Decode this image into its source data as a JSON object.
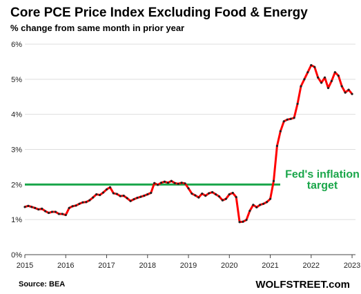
{
  "chart_data": {
    "type": "line",
    "title": "Core PCE Price Index Excluding Food & Energy",
    "subtitle": "% change from same month in prior year",
    "source": "Source: BEA",
    "brand": "WOLFSTREET.com",
    "x_ticks": [
      "2015",
      "2016",
      "2017",
      "2018",
      "2019",
      "2020",
      "2021",
      "2022",
      "2023"
    ],
    "y_ticks": [
      "0%",
      "1%",
      "2%",
      "3%",
      "4%",
      "5%",
      "6%"
    ],
    "xlim": [
      "2015-01",
      "2023-02"
    ],
    "ylim": [
      0,
      6
    ],
    "grid": "horizontal",
    "colors": {
      "line": "#ff0000",
      "markers": "#222222",
      "target": "#1aa64a",
      "grid": "#dddddd"
    },
    "target_line": {
      "value": 2.0,
      "label_line1": "Fed's inflation",
      "label_line2": "target"
    },
    "series": [
      {
        "x": [
          "2015-01",
          "2015-02",
          "2015-03",
          "2015-04",
          "2015-05",
          "2015-06",
          "2015-07",
          "2015-08",
          "2015-09",
          "2015-10",
          "2015-11",
          "2015-12",
          "2016-01",
          "2016-02",
          "2016-03",
          "2016-04",
          "2016-05",
          "2016-06",
          "2016-07",
          "2016-08",
          "2016-09",
          "2016-10",
          "2016-11",
          "2016-12",
          "2017-01",
          "2017-02",
          "2017-03",
          "2017-04",
          "2017-05",
          "2017-06",
          "2017-07",
          "2017-08",
          "2017-09",
          "2017-10",
          "2017-11",
          "2017-12",
          "2018-01",
          "2018-02",
          "2018-03",
          "2018-04",
          "2018-05",
          "2018-06",
          "2018-07",
          "2018-08",
          "2018-09",
          "2018-10",
          "2018-11",
          "2018-12",
          "2019-01",
          "2019-02",
          "2019-03",
          "2019-04",
          "2019-05",
          "2019-06",
          "2019-07",
          "2019-08",
          "2019-09",
          "2019-10",
          "2019-11",
          "2019-12",
          "2020-01",
          "2020-02",
          "2020-03",
          "2020-04",
          "2020-05",
          "2020-06",
          "2020-07",
          "2020-08",
          "2020-09",
          "2020-10",
          "2020-11",
          "2020-12",
          "2021-01",
          "2021-02",
          "2021-03",
          "2021-04",
          "2021-05",
          "2021-06",
          "2021-07",
          "2021-08",
          "2021-09",
          "2021-10",
          "2021-11",
          "2021-12",
          "2022-01",
          "2022-02",
          "2022-03",
          "2022-04",
          "2022-05",
          "2022-06",
          "2022-07",
          "2022-08",
          "2022-09",
          "2022-10",
          "2022-11",
          "2022-12",
          "2023-01"
        ],
        "values": [
          1.36,
          1.39,
          1.36,
          1.33,
          1.29,
          1.31,
          1.24,
          1.19,
          1.22,
          1.22,
          1.16,
          1.16,
          1.13,
          1.33,
          1.38,
          1.4,
          1.45,
          1.49,
          1.5,
          1.55,
          1.63,
          1.72,
          1.7,
          1.77,
          1.86,
          1.92,
          1.75,
          1.73,
          1.67,
          1.68,
          1.61,
          1.53,
          1.58,
          1.62,
          1.65,
          1.68,
          1.72,
          1.76,
          2.04,
          1.99,
          2.05,
          2.08,
          2.05,
          2.1,
          2.04,
          2.02,
          2.05,
          2.03,
          1.89,
          1.74,
          1.69,
          1.63,
          1.74,
          1.68,
          1.75,
          1.78,
          1.72,
          1.66,
          1.55,
          1.59,
          1.72,
          1.76,
          1.64,
          0.93,
          0.94,
          0.99,
          1.25,
          1.42,
          1.35,
          1.42,
          1.45,
          1.5,
          1.59,
          2.1,
          3.1,
          3.52,
          3.8,
          3.85,
          3.87,
          3.9,
          4.3,
          4.8,
          5.0,
          5.2,
          5.4,
          5.35,
          5.05,
          4.9,
          5.05,
          4.75,
          4.95,
          5.2,
          5.1,
          4.8,
          4.62,
          4.7,
          4.58
        ]
      }
    ]
  }
}
